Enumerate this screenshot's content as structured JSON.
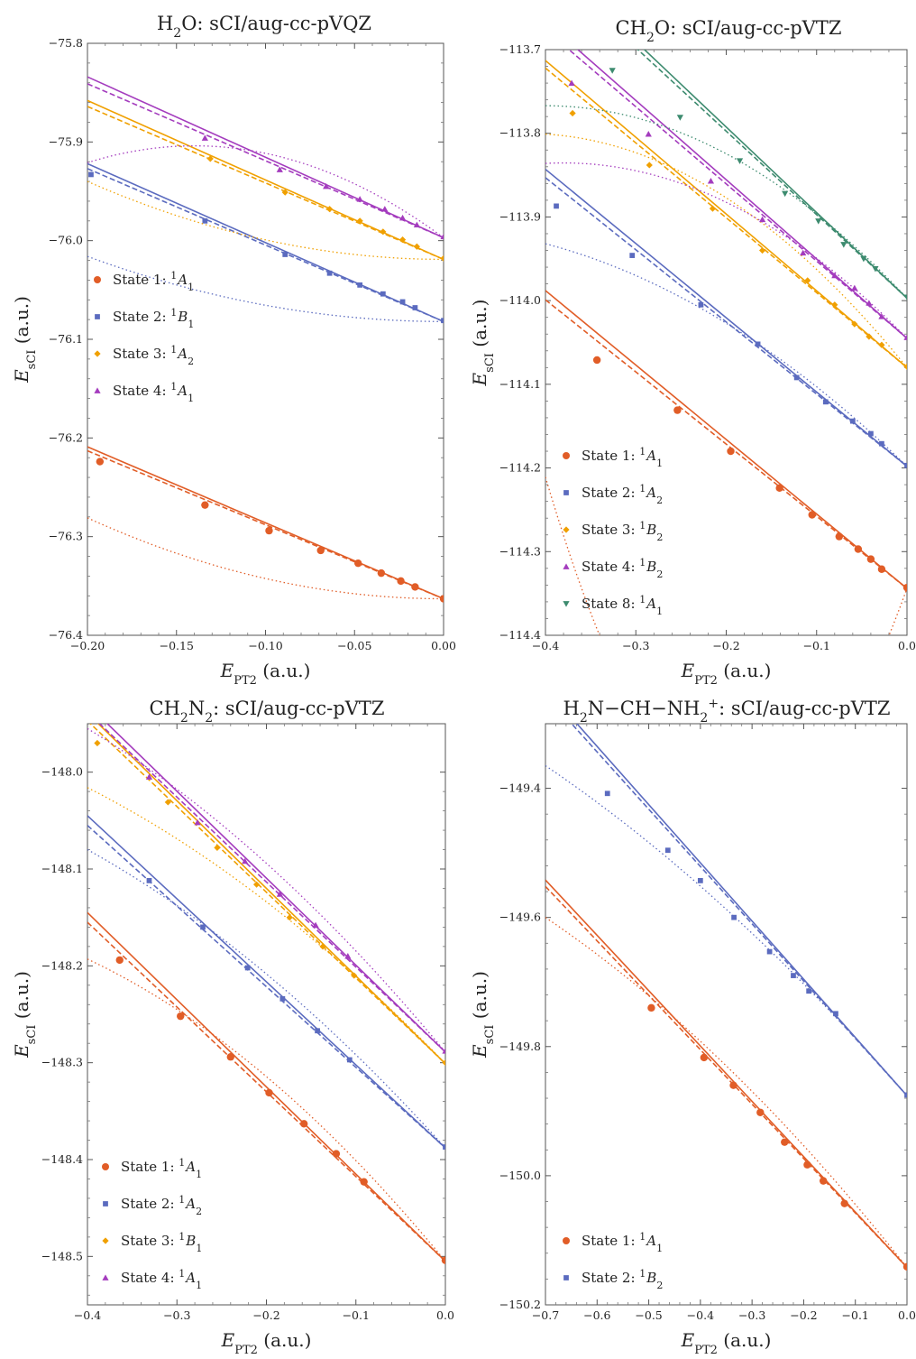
{
  "colors": {
    "state_orange_red": "#e15d27",
    "state_blue": "#5b6bbf",
    "state_gold": "#f0a000",
    "state_purple": "#a43cbe",
    "state_green": "#3d8b6f"
  },
  "chart_data": [
    {
      "type": "scatter",
      "title": {
        "main": "H",
        "sub1": "2",
        "rest": "O: sCI/aug-cc-pVQZ"
      },
      "xlabel": {
        "main": "E",
        "sub": "PT2",
        "unit": " (a.u.)"
      },
      "ylabel": {
        "main": "E",
        "sub": "sCI",
        "unit": " (a.u.)"
      },
      "xlim": [
        -0.2,
        0.0
      ],
      "ylim": [
        -76.4,
        -75.8
      ],
      "xticks": [
        "-0.20",
        "-0.15",
        "-0.10",
        "-0.05",
        "0.00"
      ],
      "xtick_values": [
        -0.2,
        -0.15,
        -0.1,
        -0.05,
        0.0
      ],
      "yticks": [
        "-75.8",
        "-75.9",
        "-76.0",
        "-76.1",
        "-76.2",
        "-76.3",
        "-76.4"
      ],
      "ytick_values": [
        -75.8,
        -75.9,
        -76.0,
        -76.1,
        -76.2,
        -76.3,
        -76.4
      ],
      "legend_position": "left-middle",
      "series": [
        {
          "name": "State 1: ",
          "term": "A",
          "term_sub": "1",
          "mult": "1",
          "marker": "circle",
          "color": "#e15d27",
          "x": [
            -0.193,
            -0.134,
            -0.098,
            -0.069,
            -0.048,
            -0.035,
            -0.024,
            -0.016,
            0.0
          ],
          "y": [
            -76.224,
            -76.268,
            -76.294,
            -76.314,
            -76.327,
            -76.337,
            -76.345,
            -76.351,
            -76.363
          ],
          "linear": [
            -76.209,
            -76.363
          ],
          "dashed": [
            -76.213,
            -76.363
          ],
          "quad": [
            -76.281,
            0.0,
            -76.363
          ]
        },
        {
          "name": "State 2: ",
          "term": "B",
          "term_sub": "1",
          "mult": "1",
          "marker": "square",
          "color": "#5b6bbf",
          "x": [
            -0.198,
            -0.134,
            -0.089,
            -0.064,
            -0.047,
            -0.034,
            -0.023,
            -0.016,
            0.0
          ],
          "y": [
            -75.933,
            -75.98,
            -76.014,
            -76.033,
            -76.045,
            -76.054,
            -76.062,
            -76.068,
            -76.081
          ],
          "linear": [
            -75.922,
            -76.082
          ],
          "dashed": [
            -75.927,
            -76.082
          ],
          "quad": [
            -76.016,
            0.0,
            -76.082
          ]
        },
        {
          "name": "State 3: ",
          "term": "A",
          "term_sub": "2",
          "mult": "1",
          "marker": "diamond",
          "color": "#f0a000",
          "x": [
            -0.131,
            -0.089,
            -0.064,
            -0.047,
            -0.034,
            -0.023,
            -0.015,
            0.0
          ],
          "y": [
            -75.917,
            -75.951,
            -75.968,
            -75.98,
            -75.991,
            -75.999,
            -76.006,
            -76.018
          ],
          "linear": [
            -75.858,
            -76.019
          ],
          "dashed": [
            -75.864,
            -76.019
          ],
          "quad": [
            -75.94,
            0.0,
            -76.019
          ]
        },
        {
          "name": "State 4: ",
          "term": "A",
          "term_sub": "1",
          "mult": "1",
          "marker": "triangle",
          "color": "#a43cbe",
          "x": [
            -0.134,
            -0.092,
            -0.066,
            -0.047,
            -0.033,
            -0.023,
            -0.015,
            0.0
          ],
          "y": [
            -75.896,
            -75.928,
            -75.945,
            -75.958,
            -75.968,
            -75.977,
            -75.984,
            -75.996
          ],
          "linear": [
            -75.834,
            -75.997
          ],
          "dashed": [
            -75.841,
            -75.997
          ],
          "quad": [
            -75.921,
            -0.14,
            -75.997
          ]
        }
      ]
    },
    {
      "type": "scatter",
      "title": {
        "main": "CH",
        "sub1": "2",
        "rest": "O: sCI/aug-cc-pVTZ"
      },
      "xlabel": {
        "main": "E",
        "sub": "PT2",
        "unit": " (a.u.)"
      },
      "ylabel": {
        "main": "E",
        "sub": "sCI",
        "unit": " (a.u.)"
      },
      "xlim": [
        -0.4,
        0.0
      ],
      "ylim": [
        -114.4,
        -113.7
      ],
      "xticks": [
        "-0.4",
        "-0.3",
        "-0.2",
        "-0.1",
        "0.0"
      ],
      "xtick_values": [
        -0.4,
        -0.3,
        -0.2,
        -0.1,
        0.0
      ],
      "yticks": [
        "-113.7",
        "-113.8",
        "-113.9",
        "-114.0",
        "-114.1",
        "-114.2",
        "-114.3",
        "-114.4"
      ],
      "ytick_values": [
        -113.7,
        -113.8,
        -113.9,
        -114.0,
        -114.1,
        -114.2,
        -114.3,
        -114.4
      ],
      "legend_position": "bottom-left",
      "series": [
        {
          "name": "State 1: ",
          "term": "A",
          "term_sub": "1",
          "mult": "1",
          "marker": "circle",
          "color": "#e15d27",
          "x": [
            -0.343,
            -0.254,
            -0.195,
            -0.141,
            -0.105,
            -0.075,
            -0.054,
            -0.04,
            -0.028,
            0.0
          ],
          "y": [
            -114.071,
            -114.131,
            -114.18,
            -114.224,
            -114.256,
            -114.282,
            -114.297,
            -114.309,
            -114.321,
            -114.343
          ],
          "linear": [
            -113.988,
            -114.344
          ],
          "dashed": [
            -113.999,
            -114.344
          ],
          "quad": [
            -114.211,
            -0.18,
            -114.344
          ]
        },
        {
          "name": "State 2: ",
          "term": "A",
          "term_sub": "2",
          "mult": "1",
          "marker": "square",
          "color": "#5b6bbf",
          "x": [
            -0.388,
            -0.304,
            -0.228,
            -0.165,
            -0.122,
            -0.09,
            -0.06,
            -0.04,
            -0.028,
            0.0
          ],
          "y": [
            -113.887,
            -113.946,
            -114.005,
            -114.052,
            -114.092,
            -114.121,
            -114.144,
            -114.159,
            -114.171,
            -114.197
          ],
          "linear": [
            -113.843,
            -114.198
          ],
          "dashed": [
            -113.853,
            -114.198
          ],
          "quad": [
            -113.932,
            -0.55,
            -114.198
          ]
        },
        {
          "name": "State 3: ",
          "term": "B",
          "term_sub": "2",
          "mult": "1",
          "marker": "diamond",
          "color": "#f0a000",
          "x": [
            -0.37,
            -0.285,
            -0.215,
            -0.16,
            -0.11,
            -0.08,
            -0.058,
            -0.042,
            -0.028,
            0.0
          ],
          "y": [
            -113.776,
            -113.838,
            -113.89,
            -113.94,
            -113.976,
            -114.005,
            -114.028,
            -114.043,
            -114.053,
            -114.079
          ],
          "linear": [
            -113.713,
            -114.08
          ],
          "dashed": [
            -113.722,
            -114.08
          ],
          "quad": [
            -113.801,
            -0.42,
            -114.08
          ]
        },
        {
          "name": "State 4: ",
          "term": "B",
          "term_sub": "2",
          "mult": "1",
          "marker": "triangle",
          "color": "#a43cbe",
          "x": [
            -0.371,
            -0.286,
            -0.217,
            -0.16,
            -0.115,
            -0.08,
            -0.058,
            -0.042,
            -0.028,
            0.0
          ],
          "y": [
            -113.74,
            -113.801,
            -113.857,
            -113.903,
            -113.943,
            -113.97,
            -113.985,
            -114.003,
            -114.019,
            -114.044
          ],
          "linear": [
            -113.666,
            -114.045
          ],
          "dashed": [
            -113.676,
            -114.045
          ],
          "quad": [
            -113.836,
            -0.38,
            -114.045
          ]
        },
        {
          "name": "State 8: ",
          "term": "A",
          "term_sub": "1",
          "mult": "1",
          "marker": "triangle-down",
          "color": "#3d8b6f",
          "x": [
            -0.326,
            -0.251,
            -0.185,
            -0.135,
            -0.098,
            -0.07,
            -0.048,
            -0.035,
            0.0
          ],
          "y": [
            -113.725,
            -113.781,
            -113.833,
            -113.872,
            -113.905,
            -113.933,
            -113.95,
            -113.962,
            -113.996
          ],
          "linear": [
            -113.588,
            -113.997
          ],
          "dashed": [
            -113.598,
            -113.997
          ],
          "quad": [
            -113.767,
            -0.4,
            -113.997
          ]
        }
      ]
    },
    {
      "type": "scatter",
      "title": {
        "main": "CH",
        "sub1": "2",
        "mid": "N",
        "sub2": "2",
        "rest": ": sCI/aug-cc-pVTZ"
      },
      "xlabel": {
        "main": "E",
        "sub": "PT2",
        "unit": " (a.u.)"
      },
      "ylabel": {
        "main": "E",
        "sub": "sCI",
        "unit": " (a.u.)"
      },
      "xlim": [
        -0.4,
        0.0
      ],
      "ylim": [
        -148.55,
        -147.95
      ],
      "xticks": [
        "-0.4",
        "-0.3",
        "-0.2",
        "-0.1",
        "0.0"
      ],
      "xtick_values": [
        -0.4,
        -0.3,
        -0.2,
        -0.1,
        0.0
      ],
      "yticks": [
        "-148.0",
        "-148.1",
        "-148.2",
        "-148.3",
        "-148.4",
        "-148.5"
      ],
      "ytick_values": [
        -148.0,
        -148.1,
        -148.2,
        -148.3,
        -148.4,
        -148.5
      ],
      "legend_position": "bottom-left",
      "series": [
        {
          "name": "State 1: ",
          "term": "A",
          "term_sub": "1",
          "mult": "1",
          "marker": "circle",
          "color": "#e15d27",
          "x": [
            -0.364,
            -0.296,
            -0.24,
            -0.197,
            -0.158,
            -0.122,
            -0.091,
            0.0
          ],
          "y": [
            -148.194,
            -148.252,
            -148.294,
            -148.331,
            -148.363,
            -148.394,
            -148.423,
            -148.504
          ],
          "linear": [
            -148.145,
            -148.505
          ],
          "dashed": [
            -148.155,
            -148.505
          ],
          "quad": [
            -148.193,
            -0.65,
            -148.505
          ]
        },
        {
          "name": "State 2: ",
          "term": "A",
          "term_sub": "2",
          "mult": "1",
          "marker": "square",
          "color": "#5b6bbf",
          "x": [
            -0.331,
            -0.271,
            -0.221,
            -0.182,
            -0.143,
            -0.107,
            0.0
          ],
          "y": [
            -148.112,
            -148.16,
            -148.202,
            -148.234,
            -148.267,
            -148.297,
            -148.387
          ],
          "linear": [
            -148.045,
            -148.388
          ],
          "dashed": [
            -148.055,
            -148.388
          ],
          "quad": [
            -148.08,
            -0.8,
            -148.388
          ]
        },
        {
          "name": "State 3: ",
          "term": "B",
          "term_sub": "1",
          "mult": "1",
          "marker": "diamond",
          "color": "#f0a000",
          "x": [
            -0.389,
            -0.31,
            -0.255,
            -0.211,
            -0.174,
            -0.137,
            -0.102,
            0.0
          ],
          "y": [
            -147.97,
            -148.031,
            -148.078,
            -148.116,
            -148.15,
            -148.18,
            -148.21,
            -148.3
          ],
          "linear": [
            -147.939,
            -148.301
          ],
          "dashed": [
            -147.947,
            -148.301
          ],
          "quad": [
            -148.016,
            -0.78,
            -148.301
          ]
        },
        {
          "name": "State 4: ",
          "term": "A",
          "term_sub": "1",
          "mult": "1",
          "marker": "triangle",
          "color": "#a43cbe",
          "x": [
            -0.331,
            -0.277,
            -0.224,
            -0.185,
            -0.145,
            -0.109,
            0.0
          ],
          "y": [
            -148.005,
            -148.052,
            -148.092,
            -148.126,
            -148.158,
            -148.19,
            -148.288
          ],
          "linear": [
            -147.93,
            -148.289
          ],
          "dashed": [
            -147.938,
            -148.289
          ],
          "quad": [
            -147.955,
            -0.8,
            -148.289
          ]
        }
      ]
    },
    {
      "type": "scatter",
      "title": {
        "main": "H",
        "sub1": "2",
        "mid": "N−CH−NH",
        "sub2": "2",
        "sup": "+",
        "rest": ": sCI/aug-cc-pVTZ"
      },
      "xlabel": {
        "main": "E",
        "sub": "PT2",
        "unit": " (a.u.)"
      },
      "ylabel": {
        "main": "E",
        "sub": "sCI",
        "unit": " (a.u.)"
      },
      "xlim": [
        -0.7,
        0.0
      ],
      "ylim": [
        -150.2,
        -149.3
      ],
      "xticks": [
        "-0.7",
        "-0.6",
        "-0.5",
        "-0.4",
        "-0.3",
        "-0.2",
        "-0.1",
        "0.0"
      ],
      "xtick_values": [
        -0.7,
        -0.6,
        -0.5,
        -0.4,
        -0.3,
        -0.2,
        -0.1,
        0.0
      ],
      "yticks": [
        "-149.4",
        "-149.6",
        "-149.8",
        "-150.0",
        "-150.2"
      ],
      "ytick_values": [
        -149.4,
        -149.6,
        -149.8,
        -150.0,
        -150.2
      ],
      "legend_position": "bottom-left",
      "series": [
        {
          "name": "State 1: ",
          "term": "A",
          "term_sub": "1",
          "mult": "1",
          "marker": "circle",
          "color": "#e15d27",
          "x": [
            -0.495,
            -0.393,
            -0.336,
            -0.284,
            -0.237,
            -0.193,
            -0.162,
            -0.121,
            0.0
          ],
          "y": [
            -149.74,
            -149.817,
            -149.86,
            -149.902,
            -149.948,
            -149.983,
            -150.008,
            -150.043,
            -150.141
          ],
          "linear": [
            -149.542,
            -150.142
          ],
          "dashed": [
            -149.552,
            -150.142
          ],
          "quad": [
            -149.6,
            -1.5,
            -150.142
          ]
        },
        {
          "name": "State 2: ",
          "term": "B",
          "term_sub": "2",
          "mult": "1",
          "marker": "square",
          "color": "#5b6bbf",
          "x": [
            -0.58,
            -0.463,
            -0.4,
            -0.335,
            -0.266,
            -0.22,
            -0.19,
            -0.138,
            0.0
          ],
          "y": [
            -149.408,
            -149.496,
            -149.543,
            -149.6,
            -149.653,
            -149.69,
            -149.714,
            -149.749,
            -149.875
          ],
          "linear": [
            -149.245,
            -149.876
          ],
          "dashed": [
            -149.255,
            -149.876
          ],
          "quad": [
            -149.365,
            -1.7,
            -149.876
          ]
        }
      ]
    }
  ]
}
